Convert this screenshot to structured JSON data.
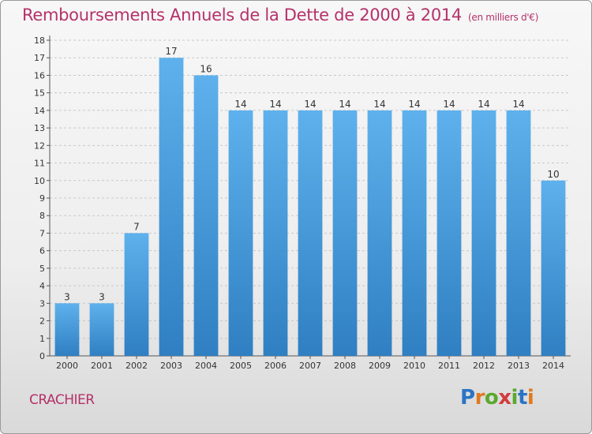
{
  "header": {
    "title": "Remboursements Annuels de la Dette de 2000 à 2014",
    "unit": "(en milliers d'€)"
  },
  "footer": {
    "commune": "CRACHIER",
    "brand": "Proxiti"
  },
  "colors": {
    "title": "#b5316a",
    "bar_top": "#5eb1ec",
    "bar_bottom": "#2f7fc2",
    "grid": "#c8c8c8"
  },
  "chart_data": {
    "type": "bar",
    "title": "Remboursements Annuels de la Dette de 2000 à 2014",
    "subtitle": "(en milliers d'€)",
    "xlabel": "",
    "ylabel": "",
    "categories": [
      "2000",
      "2001",
      "2002",
      "2003",
      "2004",
      "2005",
      "2006",
      "2007",
      "2008",
      "2009",
      "2010",
      "2011",
      "2012",
      "2013",
      "2014"
    ],
    "values": [
      3,
      3,
      7,
      17,
      16,
      14,
      14,
      14,
      14,
      14,
      14,
      14,
      14,
      14,
      10
    ],
    "ylim": [
      0,
      18
    ],
    "yticks": [
      0,
      1,
      2,
      3,
      4,
      5,
      6,
      7,
      8,
      9,
      10,
      11,
      12,
      13,
      14,
      15,
      16,
      17,
      18
    ],
    "grid": "horizontal dashed",
    "legend": "none"
  }
}
